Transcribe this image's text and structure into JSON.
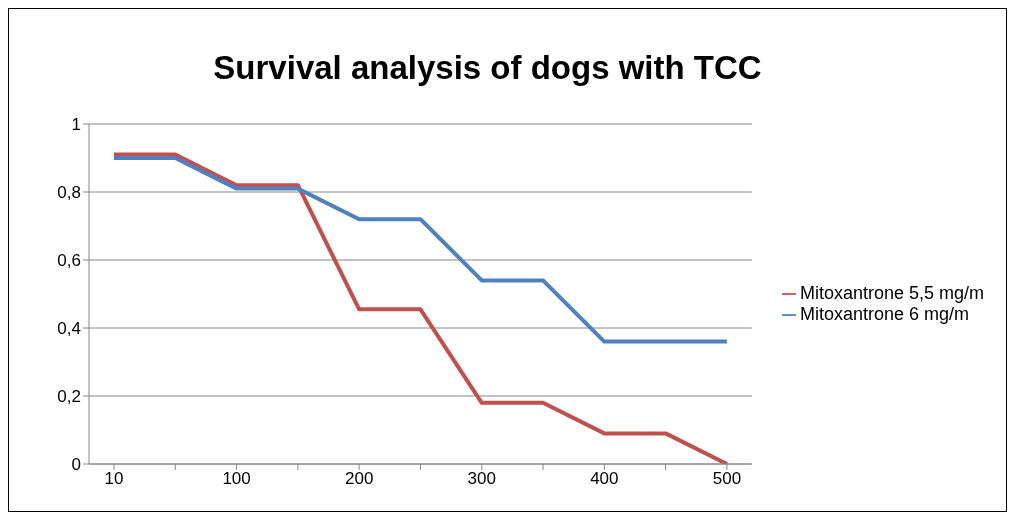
{
  "chart_data": {
    "type": "line",
    "title": "Survival analysis of dogs with TCC",
    "categories": [
      "10",
      null,
      "100",
      null,
      "200",
      null,
      "300",
      null,
      "400",
      null,
      "500"
    ],
    "series": [
      {
        "name": "Mitoxantrone 5,5 mg/m",
        "color": "#c0504d",
        "values": [
          0.91,
          0.91,
          0.82,
          0.82,
          0.455,
          0.455,
          0.18,
          0.18,
          0.09,
          0.09,
          0
        ]
      },
      {
        "name": "Mitoxantrone 6 mg/m",
        "color": "#4f81bd",
        "values": [
          0.9,
          0.9,
          0.81,
          0.81,
          0.72,
          0.72,
          0.54,
          0.54,
          0.36,
          0.36,
          0.36
        ]
      }
    ],
    "ylim": [
      0,
      1
    ],
    "yticks": [
      0,
      {
        "value": 0.2,
        "label": "0,2"
      },
      {
        "value": 0.4,
        "label": "0,4"
      },
      {
        "value": 0.6,
        "label": "0,6"
      },
      {
        "value": 0.8,
        "label": "0,8"
      },
      1
    ],
    "grid": "y",
    "legend": "right",
    "marker": "none",
    "line_style": "solid"
  }
}
